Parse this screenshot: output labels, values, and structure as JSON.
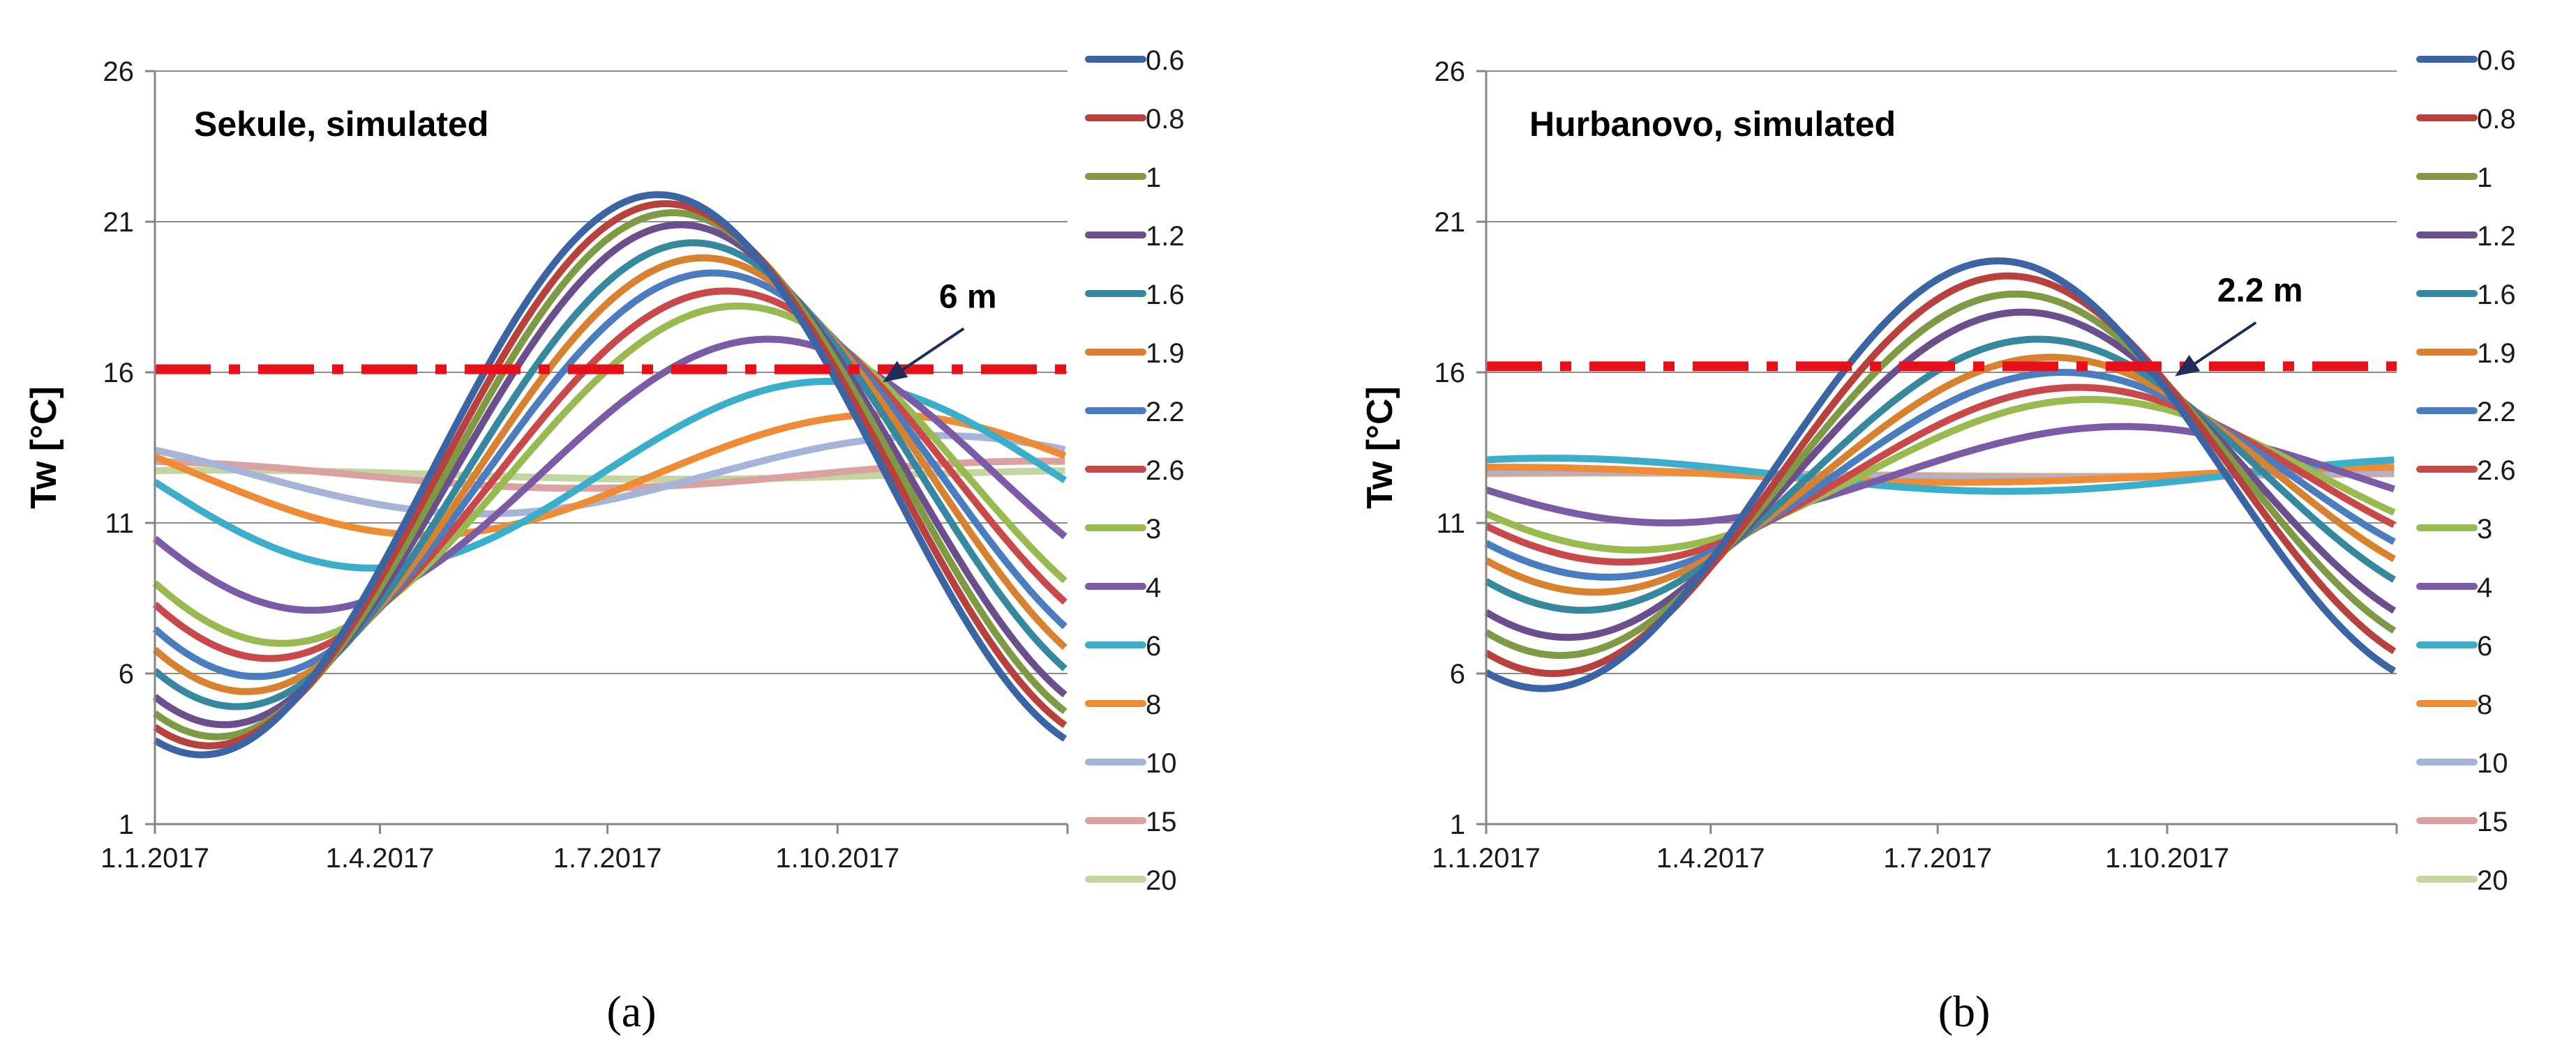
{
  "chart_data": [
    {
      "type": "line",
      "panel_label": "(a)",
      "title": "Sekule, simulated",
      "xlabel": "",
      "ylabel": "Tw  [°C]",
      "ylim": [
        1,
        26
      ],
      "yticks": [
        1,
        6,
        11,
        16,
        21,
        26
      ],
      "xlim_days": [
        0,
        365
      ],
      "xticks": [
        {
          "day": 0,
          "label": "1.1.2017"
        },
        {
          "day": 90,
          "label": "1.4.2017"
        },
        {
          "day": 181,
          "label": "1.7.2017"
        },
        {
          "day": 273,
          "label": "1.10.2017"
        }
      ],
      "grid": true,
      "legend_position": "right",
      "threshold": {
        "value": 16.1,
        "color": "#e8111b",
        "style": "dash-dot"
      },
      "annotation": {
        "text": "6 m",
        "target_day": 290,
        "target_value": 15.6
      },
      "series_model": "T(day) = mean + amplitude * sin(2π(day - lag_days)/365)",
      "series": [
        {
          "name": "0.6",
          "color": "#3b64a4",
          "mean": 12.6,
          "amplitude": 9.3,
          "lag_days": 110
        },
        {
          "name": "0.8",
          "color": "#b8403d",
          "mean": 12.6,
          "amplitude": 9.0,
          "lag_days": 113
        },
        {
          "name": "1",
          "color": "#7e9a44",
          "mean": 12.6,
          "amplitude": 8.7,
          "lag_days": 116
        },
        {
          "name": "1.2",
          "color": "#6a4f8c",
          "mean": 12.6,
          "amplitude": 8.3,
          "lag_days": 119
        },
        {
          "name": "1.6",
          "color": "#35889e",
          "mean": 12.6,
          "amplitude": 7.7,
          "lag_days": 124
        },
        {
          "name": "1.9",
          "color": "#d8812f",
          "mean": 12.6,
          "amplitude": 7.2,
          "lag_days": 128
        },
        {
          "name": "2.2",
          "color": "#4a7cc0",
          "mean": 12.6,
          "amplitude": 6.7,
          "lag_days": 132
        },
        {
          "name": "2.6",
          "color": "#c9494a",
          "mean": 12.6,
          "amplitude": 6.1,
          "lag_days": 137
        },
        {
          "name": "3",
          "color": "#97bb4f",
          "mean": 12.6,
          "amplitude": 5.6,
          "lag_days": 142
        },
        {
          "name": "4",
          "color": "#7b5aa6",
          "mean": 12.6,
          "amplitude": 4.5,
          "lag_days": 154
        },
        {
          "name": "6",
          "color": "#3aaecb",
          "mean": 12.6,
          "amplitude": 3.1,
          "lag_days": 178
        },
        {
          "name": "8",
          "color": "#f08b35",
          "mean": 12.6,
          "amplitude": 2.0,
          "lag_days": 200
        },
        {
          "name": "10",
          "color": "#a6b4d8",
          "mean": 12.6,
          "amplitude": 1.3,
          "lag_days": 222
        },
        {
          "name": "15",
          "color": "#dba1a0",
          "mean": 12.6,
          "amplitude": 0.45,
          "lag_days": 262
        },
        {
          "name": "20",
          "color": "#c3d69f",
          "mean": 12.6,
          "amplitude": 0.15,
          "lag_days": 300
        }
      ]
    },
    {
      "type": "line",
      "panel_label": "(b)",
      "title": "Hurbanovo, simulated",
      "xlabel": "",
      "ylabel": "Tw  [°C]",
      "ylim": [
        1,
        26
      ],
      "yticks": [
        1,
        6,
        11,
        16,
        21,
        26
      ],
      "xlim_days": [
        0,
        365
      ],
      "xticks": [
        {
          "day": 0,
          "label": "1.1.2017"
        },
        {
          "day": 90,
          "label": "1.4.2017"
        },
        {
          "day": 181,
          "label": "1.7.2017"
        },
        {
          "day": 273,
          "label": "1.10.2017"
        }
      ],
      "grid": true,
      "legend_position": "right",
      "threshold": {
        "value": 16.2,
        "color": "#e8111b",
        "style": "dash-dot"
      },
      "annotation": {
        "text": "2.2 m",
        "target_day": 275,
        "target_value": 15.8
      },
      "series_model": "T(day) = mean + amplitude * sin(2π(day - lag_days)/365)",
      "series": [
        {
          "name": "0.6",
          "color": "#3b64a4",
          "mean": 12.6,
          "amplitude": 7.1,
          "lag_days": 114
        },
        {
          "name": "0.8",
          "color": "#b8403d",
          "mean": 12.6,
          "amplitude": 6.6,
          "lag_days": 118
        },
        {
          "name": "1",
          "color": "#7e9a44",
          "mean": 12.6,
          "amplitude": 6.0,
          "lag_days": 121
        },
        {
          "name": "1.2",
          "color": "#6a4f8c",
          "mean": 12.6,
          "amplitude": 5.4,
          "lag_days": 124
        },
        {
          "name": "1.6",
          "color": "#35889e",
          "mean": 12.6,
          "amplitude": 4.5,
          "lag_days": 130
        },
        {
          "name": "1.9",
          "color": "#d8812f",
          "mean": 12.6,
          "amplitude": 3.9,
          "lag_days": 135
        },
        {
          "name": "2.2",
          "color": "#4a7cc0",
          "mean": 12.6,
          "amplitude": 3.4,
          "lag_days": 140
        },
        {
          "name": "2.6",
          "color": "#c9494a",
          "mean": 12.6,
          "amplitude": 2.9,
          "lag_days": 146
        },
        {
          "name": "3",
          "color": "#97bb4f",
          "mean": 12.6,
          "amplitude": 2.5,
          "lag_days": 151
        },
        {
          "name": "4",
          "color": "#7b5aa6",
          "mean": 12.6,
          "amplitude": 1.6,
          "lag_days": 164
        },
        {
          "name": "6",
          "color": "#3aaecb",
          "mean": 12.6,
          "amplitude": 0.55,
          "lag_days": 300
        },
        {
          "name": "8",
          "color": "#f08b35",
          "mean": 12.6,
          "amplitude": 0.25,
          "lag_days": 280
        },
        {
          "name": "10",
          "color": "#a6b4d8",
          "mean": 12.6,
          "amplitude": 0.15,
          "lag_days": 300
        },
        {
          "name": "15",
          "color": "#dba1a0",
          "mean": 12.6,
          "amplitude": 0.08,
          "lag_days": 320
        },
        {
          "name": "20",
          "color": "#c3d69f",
          "mean": 12.6,
          "amplitude": 0.05,
          "lag_days": 330
        }
      ]
    }
  ]
}
